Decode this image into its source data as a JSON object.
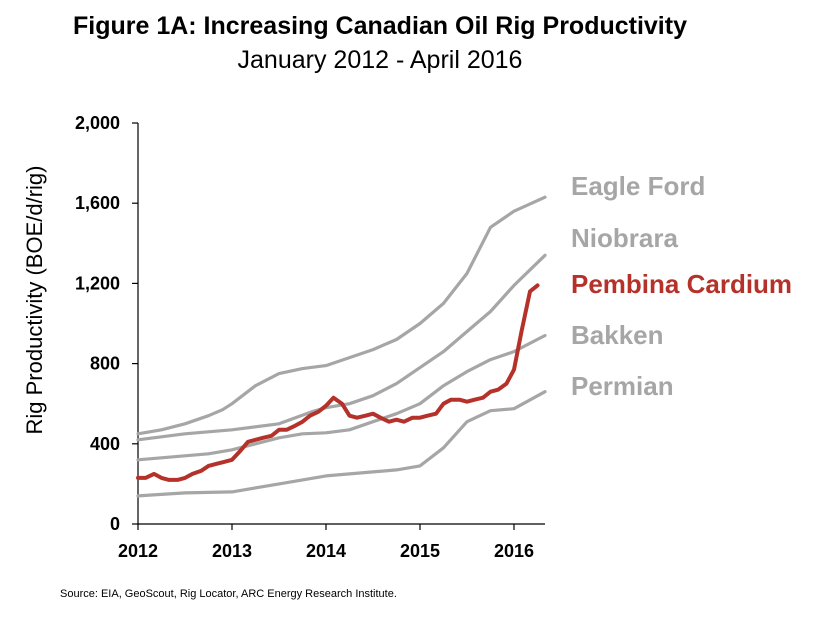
{
  "chart_data": {
    "type": "line",
    "title": "Figure 1A: Increasing Canadian Oil Rig Productivity",
    "subtitle": "January 2012 - April 2016",
    "xlabel": "",
    "ylabel": "Rig Productivity (BOE/d/rig)",
    "xlim": [
      2012,
      2016.33
    ],
    "ylim": [
      0,
      2000
    ],
    "x_ticks": [
      "2012",
      "2013",
      "2014",
      "2015",
      "2016"
    ],
    "y_ticks": [
      "0",
      "400",
      "800",
      "1,200",
      "1,600",
      "2,000"
    ],
    "series": [
      {
        "name": "Eagle Ford",
        "color": "#a6a6a6",
        "points": [
          [
            2012.0,
            450
          ],
          [
            2012.25,
            470
          ],
          [
            2012.5,
            500
          ],
          [
            2012.75,
            540
          ],
          [
            2012.9,
            570
          ],
          [
            2013.0,
            600
          ],
          [
            2013.25,
            690
          ],
          [
            2013.5,
            750
          ],
          [
            2013.75,
            775
          ],
          [
            2014.0,
            790
          ],
          [
            2014.25,
            830
          ],
          [
            2014.5,
            870
          ],
          [
            2014.75,
            920
          ],
          [
            2015.0,
            1000
          ],
          [
            2015.25,
            1100
          ],
          [
            2015.5,
            1250
          ],
          [
            2015.75,
            1480
          ],
          [
            2016.0,
            1560
          ],
          [
            2016.33,
            1630
          ]
        ]
      },
      {
        "name": "Niobrara",
        "color": "#a6a6a6",
        "points": [
          [
            2012.0,
            420
          ],
          [
            2012.5,
            450
          ],
          [
            2013.0,
            470
          ],
          [
            2013.5,
            500
          ],
          [
            2013.85,
            560
          ],
          [
            2014.0,
            580
          ],
          [
            2014.25,
            600
          ],
          [
            2014.5,
            640
          ],
          [
            2014.75,
            700
          ],
          [
            2015.0,
            780
          ],
          [
            2015.25,
            860
          ],
          [
            2015.5,
            960
          ],
          [
            2015.75,
            1060
          ],
          [
            2016.0,
            1190
          ],
          [
            2016.33,
            1340
          ]
        ]
      },
      {
        "name": "Pembina Cardium",
        "color": "#b5322a",
        "points": [
          [
            2012.0,
            230
          ],
          [
            2012.08,
            230
          ],
          [
            2012.17,
            250
          ],
          [
            2012.25,
            230
          ],
          [
            2012.33,
            220
          ],
          [
            2012.42,
            220
          ],
          [
            2012.5,
            230
          ],
          [
            2012.58,
            250
          ],
          [
            2012.67,
            265
          ],
          [
            2012.75,
            290
          ],
          [
            2012.83,
            300
          ],
          [
            2012.92,
            310
          ],
          [
            2013.0,
            320
          ],
          [
            2013.08,
            360
          ],
          [
            2013.17,
            410
          ],
          [
            2013.25,
            420
          ],
          [
            2013.33,
            430
          ],
          [
            2013.42,
            440
          ],
          [
            2013.5,
            470
          ],
          [
            2013.58,
            470
          ],
          [
            2013.67,
            490
          ],
          [
            2013.75,
            510
          ],
          [
            2013.83,
            540
          ],
          [
            2013.92,
            560
          ],
          [
            2014.0,
            590
          ],
          [
            2014.08,
            630
          ],
          [
            2014.17,
            600
          ],
          [
            2014.25,
            540
          ],
          [
            2014.33,
            530
          ],
          [
            2014.42,
            540
          ],
          [
            2014.5,
            550
          ],
          [
            2014.58,
            530
          ],
          [
            2014.67,
            510
          ],
          [
            2014.75,
            520
          ],
          [
            2014.83,
            510
          ],
          [
            2014.92,
            530
          ],
          [
            2015.0,
            530
          ],
          [
            2015.08,
            540
          ],
          [
            2015.17,
            550
          ],
          [
            2015.25,
            600
          ],
          [
            2015.33,
            620
          ],
          [
            2015.42,
            620
          ],
          [
            2015.5,
            610
          ],
          [
            2015.58,
            620
          ],
          [
            2015.67,
            630
          ],
          [
            2015.75,
            660
          ],
          [
            2015.83,
            670
          ],
          [
            2015.92,
            700
          ],
          [
            2016.0,
            770
          ],
          [
            2016.08,
            960
          ],
          [
            2016.17,
            1160
          ],
          [
            2016.25,
            1190
          ]
        ]
      },
      {
        "name": "Bakken",
        "color": "#a6a6a6",
        "points": [
          [
            2012.0,
            320
          ],
          [
            2012.25,
            330
          ],
          [
            2012.5,
            340
          ],
          [
            2012.75,
            350
          ],
          [
            2013.0,
            370
          ],
          [
            2013.25,
            400
          ],
          [
            2013.5,
            430
          ],
          [
            2013.75,
            450
          ],
          [
            2014.0,
            455
          ],
          [
            2014.25,
            470
          ],
          [
            2014.5,
            510
          ],
          [
            2014.75,
            550
          ],
          [
            2015.0,
            600
          ],
          [
            2015.25,
            690
          ],
          [
            2015.5,
            760
          ],
          [
            2015.75,
            820
          ],
          [
            2016.0,
            860
          ],
          [
            2016.33,
            940
          ]
        ]
      },
      {
        "name": "Permian",
        "color": "#a6a6a6",
        "points": [
          [
            2012.0,
            140
          ],
          [
            2012.5,
            155
          ],
          [
            2013.0,
            160
          ],
          [
            2013.5,
            200
          ],
          [
            2014.0,
            240
          ],
          [
            2014.5,
            260
          ],
          [
            2014.75,
            270
          ],
          [
            2015.0,
            290
          ],
          [
            2015.25,
            380
          ],
          [
            2015.5,
            510
          ],
          [
            2015.75,
            565
          ],
          [
            2016.0,
            575
          ],
          [
            2016.33,
            660
          ]
        ]
      }
    ]
  },
  "source": "Source: EIA,  GeoScout, Rig Locator, ARC Energy Research Institute."
}
